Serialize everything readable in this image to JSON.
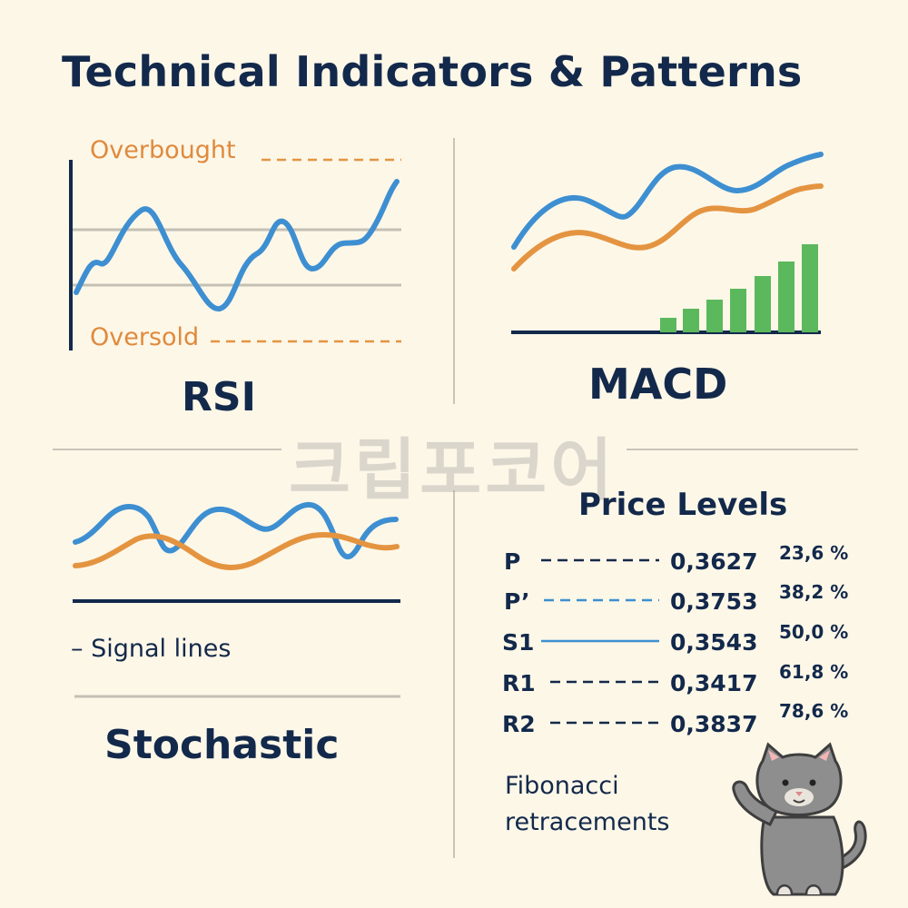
{
  "title": "Technical Indicators & Patterns",
  "watermark": "크립포코어",
  "rsi": {
    "label": "RSI",
    "overbought_label": "Overbought",
    "oversold_label": "Oversold"
  },
  "macd": {
    "label": "MACD"
  },
  "stochastic": {
    "label": "Stochastic",
    "legend": "– Signal lines"
  },
  "price_levels": {
    "title": "Price Levels",
    "rows": [
      {
        "label": "P",
        "value": "0,3627",
        "style": "dashed"
      },
      {
        "label": "P’",
        "value": "0,3753",
        "style": "dashed-blue"
      },
      {
        "label": "S1",
        "value": "0,3543",
        "style": "solid-blue"
      },
      {
        "label": "R1",
        "value": "0,3417",
        "style": "dashed"
      },
      {
        "label": "R2",
        "value": "0,3837",
        "style": "dashed"
      }
    ],
    "fibonacci_pcts": [
      "23,6 %",
      "38,2 %",
      "50,0 %",
      "61,8 %",
      "78,6 %"
    ],
    "fib_line1": "Fibonacci",
    "fib_line2": "retracements"
  },
  "colors": {
    "navy": "#13294b",
    "blue": "#3d8fd1",
    "orange": "#e49440",
    "green": "#5cb85c",
    "gray_line": "#c4c0b4",
    "background": "#fdf7e8"
  },
  "icons": [
    "cat-mascot-icon"
  ]
}
